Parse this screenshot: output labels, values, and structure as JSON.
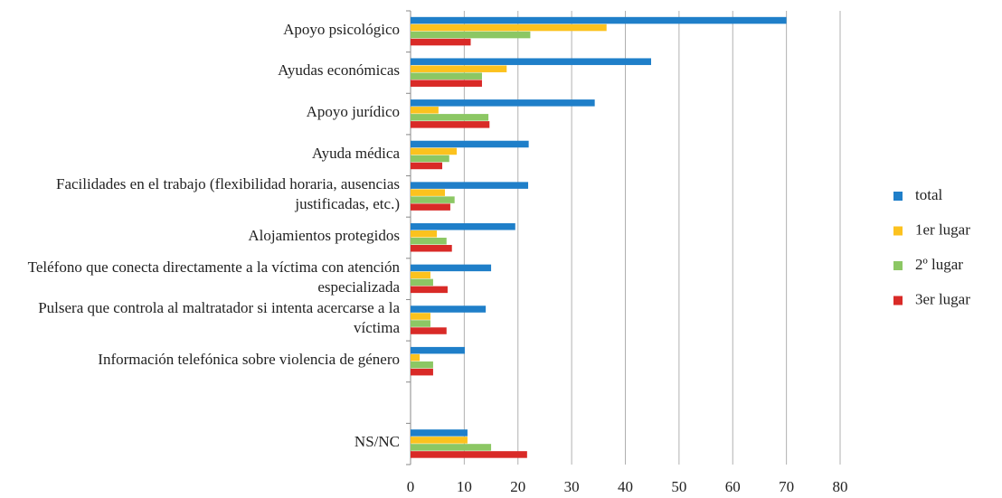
{
  "chart_data": {
    "type": "hbar",
    "categories": [
      "Apoyo psicológico",
      "Ayudas económicas",
      "Apoyo jurídico",
      "Ayuda médica",
      "Facilidades en el trabajo (flexibilidad horaria, ausencias justificadas, etc.)",
      "Alojamientos protegidos",
      "Teléfono que conecta directamente a la víctima con atención especializada",
      "Pulsera que controla al maltratador si intenta acercarse a la víctima",
      "Información telefónica sobre violencia de género",
      null,
      "NS/NC"
    ],
    "series": [
      {
        "name": "total",
        "color": "#1f7fc9",
        "values": [
          70,
          44.8,
          34.3,
          22,
          21.9,
          19.5,
          15,
          14,
          10.1,
          null,
          10.6
        ]
      },
      {
        "name": "1er lugar",
        "color": "#fcc21e",
        "values": [
          36.5,
          17.9,
          5.2,
          8.6,
          6.4,
          4.9,
          3.7,
          3.7,
          1.7,
          null,
          10.6
        ]
      },
      {
        "name": "2º lugar",
        "color": "#8cc764",
        "values": [
          22.3,
          13.3,
          14.5,
          7.2,
          8.2,
          6.7,
          4.2,
          3.7,
          4.2,
          null,
          15
        ]
      },
      {
        "name": "3er lugar",
        "color": "#d92a27",
        "values": [
          11.2,
          13.3,
          14.7,
          5.9,
          7.4,
          7.7,
          6.9,
          6.7,
          4.2,
          null,
          21.7
        ]
      }
    ],
    "xlim": [
      0,
      80
    ],
    "xticks": [
      0,
      10,
      20,
      30,
      40,
      50,
      60,
      70,
      80
    ],
    "grid": true,
    "legend": "right"
  }
}
